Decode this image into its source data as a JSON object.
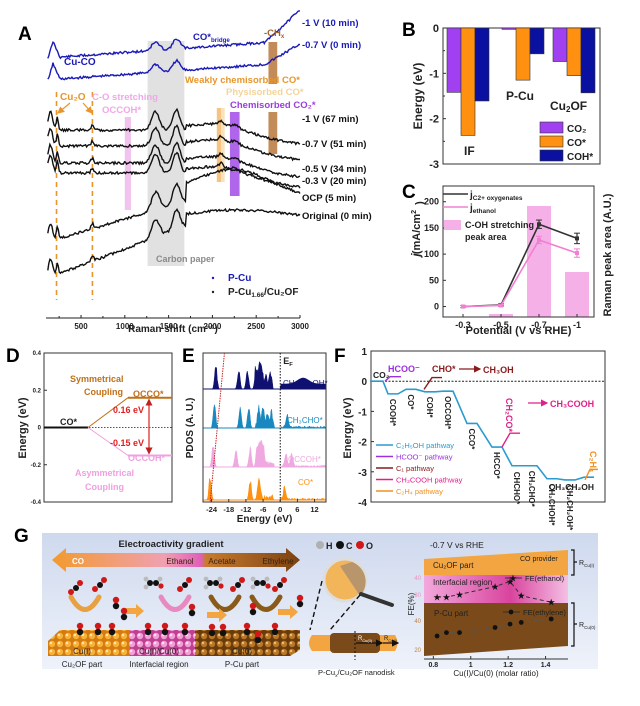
{
  "panels": {
    "A": "A",
    "B": "B",
    "C": "C",
    "D": "D",
    "E": "E",
    "F": "F",
    "G": "G"
  },
  "chart_data": [
    {
      "id": "A",
      "type": "line",
      "title": "",
      "xlabel": "Raman shift (cm⁻¹)",
      "xlim": [
        100,
        3000
      ],
      "xticks": [
        "500",
        "1000",
        "1500",
        "2000",
        "2500",
        "3000"
      ],
      "series": [
        {
          "name": "-1 V (10 min)",
          "sample": "P-Cu",
          "color": "#1a1ab8"
        },
        {
          "name": "-0.7 V (0 min)",
          "sample": "P-Cu",
          "color": "#1a1ab8"
        },
        {
          "name": "-1 V (67 min)",
          "sample": "P-Cu1.66/Cu2OF",
          "color": "#111111"
        },
        {
          "name": "-0.7 V (51 min)",
          "sample": "P-Cu1.66/Cu2OF",
          "color": "#111111"
        },
        {
          "name": "-0.5 V (34 min)",
          "sample": "P-Cu1.66/Cu2OF",
          "color": "#111111"
        },
        {
          "name": "-0.3 V (20 min)",
          "sample": "P-Cu1.66/Cu2OF",
          "color": "#111111"
        },
        {
          "name": "OCP (5 min)",
          "sample": "P-Cu1.66/Cu2OF",
          "color": "#111111"
        },
        {
          "name": "Original (0 min)",
          "sample": "P-Cu1.66/Cu2OF",
          "color": "#111111"
        }
      ],
      "annotations": [
        {
          "text": "Cu-CO",
          "color": "#1a1ab8"
        },
        {
          "text": "CO*",
          "sub": "bridge",
          "color": "#1a1ab8"
        },
        {
          "text": "-CH",
          "sub": "x",
          "color": "#a0622d"
        },
        {
          "text": "Cu₂O",
          "color": "#e8962b"
        },
        {
          "text": "C-O stretching",
          "color": "#f0a8e8"
        },
        {
          "text": "OCCOH*",
          "color": "#f0a8e8"
        },
        {
          "text": "Weakly chemisorbed CO*",
          "color": "#e8962b"
        },
        {
          "text": "Physisorbed CO*",
          "color": "#f5d49a"
        },
        {
          "text": "Chemisorbed CO₂*",
          "color": "#9b3be0"
        },
        {
          "text": "Carbon paper",
          "color": "#8a8a8a"
        }
      ],
      "bands": [
        {
          "label": "Cu2O",
          "x": [
            220,
            630
          ],
          "style": "dashed"
        },
        {
          "label": "C-O stretching OCCOH*",
          "x": [
            1000,
            1070
          ],
          "color": "#f0b8ec"
        },
        {
          "label": "Carbon paper",
          "x": [
            1260,
            1680
          ],
          "color": "#dcdcdc"
        },
        {
          "label": "Weakly chemisorbed CO*",
          "x": [
            2050,
            2100
          ],
          "color": "#f5b96a"
        },
        {
          "label": "Physisorbed CO*",
          "x": [
            2100,
            2140
          ],
          "color": "#f8dcb0"
        },
        {
          "label": "Chemisorbed CO2*",
          "x": [
            2200,
            2310
          ],
          "color": "#a24be8"
        },
        {
          "label": "-CHx",
          "x": [
            2640,
            2740
          ],
          "color": "#b8773a"
        }
      ],
      "legend": [
        {
          "label": "P-Cu",
          "color": "#1a1ab8"
        },
        {
          "label": "P-Cu",
          "sub": "1.66",
          "suffix": "/Cu₂OF",
          "color": "#222222"
        }
      ]
    },
    {
      "id": "B",
      "type": "bar",
      "ylabel": "Energy (eV)",
      "ylim": [
        -3,
        0
      ],
      "yticks": [
        "0",
        "-1",
        "-2",
        "-3"
      ],
      "categories": [
        "IF",
        "P-Cu",
        "Cu₂OF"
      ],
      "series": [
        {
          "name": "CO₂",
          "color": "#a040f0",
          "values": [
            -1.42,
            -0.03,
            -0.74
          ]
        },
        {
          "name": "CO*",
          "color": "#ff9010",
          "values": [
            -2.37,
            -1.15,
            -1.05
          ]
        },
        {
          "name": "COH*",
          "color": "#0a10a0",
          "values": [
            -1.61,
            -0.57,
            -1.43
          ]
        }
      ],
      "legend": "bottom-right"
    },
    {
      "id": "C",
      "type": "line",
      "xlabel": "Potential (V vs RHE)",
      "ylabel": "j (mA/cm²)",
      "y2label": "Raman peak area (A.U.)",
      "ylim": [
        -20,
        230
      ],
      "yticks": [
        "0",
        "50",
        "100",
        "150",
        "200"
      ],
      "categories": [
        "-0.3",
        "-0.5",
        "-0.7",
        "-1"
      ],
      "series": [
        {
          "name": "j",
          "sub": "C2+ oxygenates",
          "color": "#333333",
          "values": [
            0,
            3,
            157,
            130
          ],
          "errors": [
            2,
            2,
            8,
            10
          ]
        },
        {
          "name": "j",
          "sub": "ethanol",
          "color": "#f080d0",
          "values": [
            0,
            2,
            127,
            102
          ],
          "errors": [
            2,
            2,
            7,
            8
          ]
        },
        {
          "name": "C-OH stretching peak area",
          "type": "bar",
          "color": "#f5b0e8",
          "values": [
            0,
            1,
            37,
            15
          ]
        }
      ],
      "legend": "top-left"
    },
    {
      "id": "D",
      "type": "line",
      "ylabel": "Energy (eV)",
      "ylim": [
        -0.4,
        0.4
      ],
      "yticks": [
        "0.4",
        "0.2",
        "0",
        "-0.2",
        "-0.4"
      ],
      "levels": [
        {
          "name": "CO*",
          "value": 0,
          "color": "#111111"
        },
        {
          "name": "OCCO*",
          "value": 0.16,
          "color": "#c0701a"
        },
        {
          "name": "OCCOH*",
          "value": -0.15,
          "color": "#f0a0e0"
        }
      ],
      "annotations": [
        {
          "text": "Symmetrical",
          "color": "#c0701a"
        },
        {
          "text": "Coupling",
          "color": "#c0701a"
        },
        {
          "text": "0.16 eV",
          "color": "#e02020"
        },
        {
          "text": "-0.15 eV",
          "color": "#e02020"
        },
        {
          "text": "Asymmetrical",
          "color": "#f0a0e0"
        },
        {
          "text": "Coupling",
          "color": "#f0a0e0"
        }
      ]
    },
    {
      "id": "E",
      "type": "area",
      "xlabel": "Energy (eV)",
      "ylabel": "PDOS (A. U.)",
      "xlim": [
        -27,
        16
      ],
      "xticks": [
        "-24",
        "-18",
        "-12",
        "-6",
        "0",
        "6",
        "12"
      ],
      "fermi_label": "E",
      "fermi_sub": "F",
      "series": [
        {
          "name": "CH₃CH₂OH*",
          "color": "#101070",
          "peaks": [
            -22.5,
            -14.5,
            -11.5,
            -8.5,
            -7.3,
            -6.5,
            -5,
            -3.5
          ]
        },
        {
          "name": "CH₃CHO*",
          "color": "#1a88c0",
          "peaks": [
            -23,
            -14,
            -11,
            -7.5,
            -6,
            -4.5,
            -3,
            2.5
          ]
        },
        {
          "name": "OCCOH*",
          "color": "#f0a8e0",
          "peaks": [
            -23.5,
            -15.5,
            -10.5,
            -8,
            -7,
            -6,
            2,
            4
          ]
        },
        {
          "name": "CO*",
          "color": "#ff9010",
          "peaks": [
            -24.5,
            -10.5,
            -7.5,
            1.5
          ]
        }
      ]
    },
    {
      "id": "F",
      "type": "line",
      "ylabel": "Energy (eV)",
      "ylim": [
        -4,
        1
      ],
      "yticks": [
        "1",
        "0",
        "-1",
        "-2",
        "-3",
        "-4"
      ],
      "steps": [
        {
          "label": "CO₂",
          "value": 0
        },
        {
          "label": "COOH*",
          "value": -0.42
        },
        {
          "label": "CO*",
          "value": -0.27
        },
        {
          "label": "COH*",
          "value": -0.35
        },
        {
          "label": "OCCOH*",
          "value": -0.33
        },
        {
          "label": "CCO*",
          "value": -1.4
        },
        {
          "label": "HCCO*",
          "value": -2.18
        },
        {
          "label": "CHCHO*",
          "value": -2.8
        },
        {
          "label": "CH₂CHO*",
          "value": -2.8
        },
        {
          "label": "CH₂CHOH*",
          "value": -3.23
        },
        {
          "label": "CH₂CH₂OH*",
          "value": -3.27
        },
        {
          "label": "CH₃CH₂OH",
          "value": -3.18
        }
      ],
      "branches": [
        {
          "label": "HCOO⁻",
          "value": 0.15,
          "color": "#9b30e0"
        },
        {
          "label": "CHO*",
          "value": 0.12,
          "color": "#8b1a1a",
          "arrow_to": "CH₃OH"
        },
        {
          "label": "CH₂CO*",
          "value": -1.72,
          "color": "#e0208a",
          "arrow_to": "CH₃COOH"
        },
        {
          "label": "C₂H₄",
          "value": -2.92,
          "color": "#f09020"
        }
      ],
      "legend": [
        {
          "label": "C₂H₅OH pathway",
          "color": "#2a9bd0"
        },
        {
          "label": "HCOO⁻ pathway",
          "color": "#9b30e0"
        },
        {
          "label": "C₁ pathway",
          "color": "#8b1a1a"
        },
        {
          "label": "CH₃COOH pathway",
          "color": "#e0208a"
        },
        {
          "label": "C₂H₄ pathway",
          "color": "#f09020"
        }
      ]
    },
    {
      "id": "G",
      "type": "scatter",
      "title": "-0.7 V vs RHE",
      "xlabel": "Cu(I)/Cu(0) (molar ratio)",
      "ylabel": "FE(%)",
      "xlim": [
        0.75,
        1.52
      ],
      "xticks": [
        "0.8",
        "1",
        "1.2",
        "1.4"
      ],
      "series": [
        {
          "name": "FE(ethanol)",
          "marker": "star",
          "x": [
            0.82,
            0.87,
            0.94,
            1.13,
            1.21,
            1.27,
            1.43
          ],
          "y": [
            29,
            29,
            30,
            33,
            35,
            29.5,
            27
          ]
        },
        {
          "name": "FE(ethylene)",
          "marker": "circle",
          "x": [
            0.82,
            0.87,
            0.94,
            1.13,
            1.21,
            1.27,
            1.43
          ],
          "y": [
            29,
            31,
            31,
            34,
            36,
            37,
            39
          ]
        }
      ],
      "regions": [
        {
          "label": "Cu₂OF part",
          "note": "CO provider",
          "color": "#f2a540"
        },
        {
          "label": "Interfacial region",
          "color": "#e060b0"
        },
        {
          "label": "P-Cu part",
          "color": "#7a4a1a"
        }
      ],
      "yticks_top": [
        "40",
        "30"
      ],
      "yticks_bottom": [
        "40",
        "20"
      ],
      "brackets": [
        {
          "label": "R",
          "sub": "Cu(I)"
        },
        {
          "label": "R",
          "sub": "Cu(0)"
        }
      ]
    }
  ],
  "schematic": {
    "gradient_title": "Electroactivity gradient",
    "gradient_labels": [
      "CO",
      "Ethanol",
      "Acetate",
      "Ethylene"
    ],
    "regions": [
      {
        "line1": "Cu(I)",
        "line2": "Cu₂OF part"
      },
      {
        "line1": "Cu(I)/Cu(0)",
        "line2": "Interfacial region"
      },
      {
        "line1": "Cu(0)",
        "line2": "P-Cu part"
      }
    ],
    "atom_legend": [
      {
        "symbol": "H",
        "color": "#b0b0b0"
      },
      {
        "symbol": "C",
        "color": "#111111"
      },
      {
        "symbol": "O",
        "color": "#d01818"
      }
    ],
    "nanodisk_label": "P-Cu",
    "nanodisk_sub": "x",
    "nanodisk_suffix": "/Cu₂OF  nanodisk",
    "r_cu0": "R",
    "r_cu0_sub": "Cu(0)",
    "r_cu1": "R",
    "r_cu1_sub": "Cu(I)"
  }
}
